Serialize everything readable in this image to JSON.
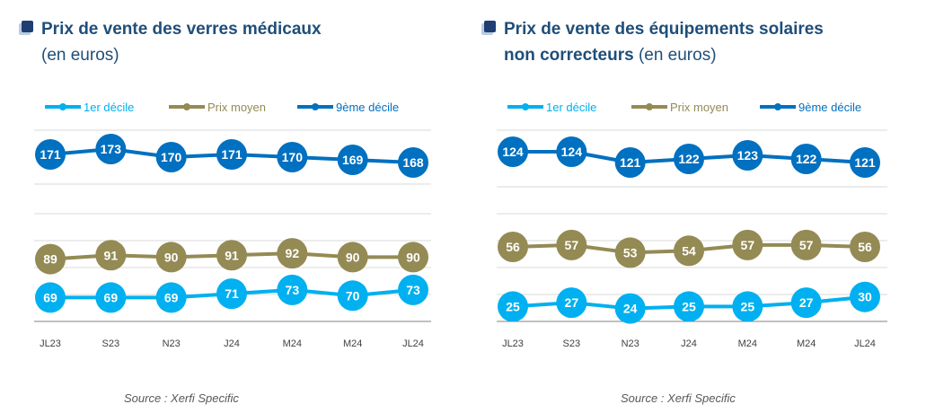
{
  "chart_data": [
    {
      "type": "line",
      "title": "Prix de vente des verres médicaux",
      "title_lines": [
        "Prix de vente des verres médicaux"
      ],
      "unit": "(en euros)",
      "source": "Source : Xerfi Specific",
      "categories": [
        "JL23",
        "S23",
        "N23",
        "J24",
        "M24",
        "M24",
        "JL24"
      ],
      "series": [
        {
          "name": "1er décile",
          "color": "#00b0f0",
          "values": [
            69,
            69,
            69,
            71,
            73,
            70,
            73
          ]
        },
        {
          "name": "Prix moyen",
          "color": "#948a54",
          "values": [
            89,
            91,
            90,
            91,
            92,
            90,
            90
          ]
        },
        {
          "name": "9ème décile",
          "color": "#0070c0",
          "values": [
            171,
            173,
            170,
            171,
            170,
            169,
            168
          ]
        }
      ],
      "legend_position": "top",
      "grid": true
    },
    {
      "type": "line",
      "title": "Prix de vente des équipements solaires non correcteurs",
      "title_lines": [
        "Prix de vente des équipements solaires",
        "non correcteurs"
      ],
      "unit": "(en euros)",
      "source": "Source : Xerfi Specific",
      "categories": [
        "JL23",
        "S23",
        "N23",
        "J24",
        "M24",
        "M24",
        "JL24"
      ],
      "series": [
        {
          "name": "1er décile",
          "color": "#00b0f0",
          "values": [
            25,
            27,
            24,
            25,
            25,
            27,
            30
          ]
        },
        {
          "name": "Prix moyen",
          "color": "#948a54",
          "values": [
            56,
            57,
            53,
            54,
            57,
            57,
            56
          ]
        },
        {
          "name": "9ème décile",
          "color": "#0070c0",
          "values": [
            124,
            124,
            121,
            122,
            123,
            122,
            121
          ]
        }
      ],
      "legend_position": "top",
      "grid": true
    }
  ]
}
